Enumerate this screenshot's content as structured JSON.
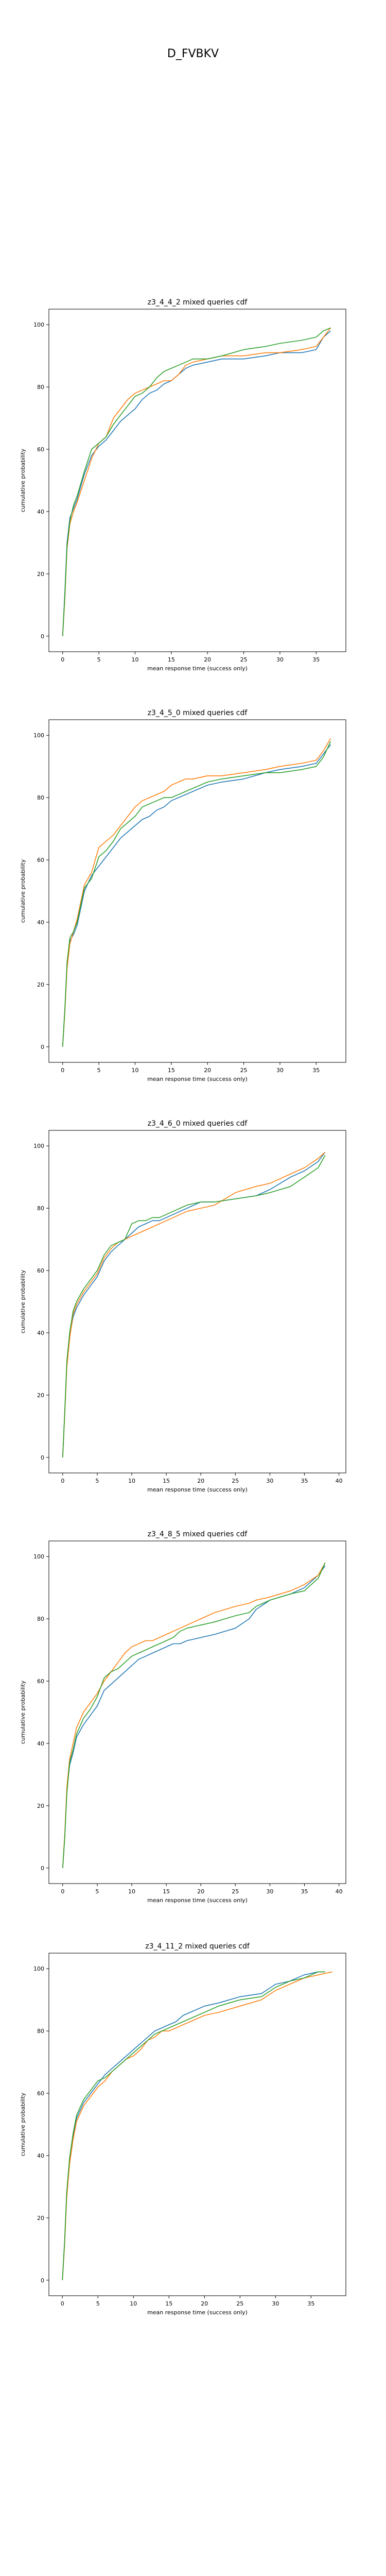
{
  "page": {
    "title": "D_FVBKV"
  },
  "series_colors": [
    "#1f77b4",
    "#ff7f0e",
    "#2ca02c"
  ],
  "chart_data": [
    {
      "type": "line",
      "title": "z3_4_4_2 mixed queries cdf",
      "xlabel": "mean response time (success only)",
      "ylabel": "cumulative probability",
      "xlim": [
        -1.9,
        39.1
      ],
      "ylim": [
        -5,
        105
      ],
      "xticks": [
        0,
        5,
        10,
        15,
        20,
        25,
        30,
        35
      ],
      "yticks": [
        0,
        20,
        40,
        60,
        80,
        100
      ],
      "grid": false,
      "series": [
        {
          "x": [
            0,
            0.3,
            0.6,
            1,
            1.5,
            2,
            3,
            4,
            5,
            6,
            7,
            8,
            9,
            10,
            11,
            12,
            13,
            14,
            15,
            16,
            17,
            18,
            20,
            22,
            25,
            28,
            30,
            33,
            35,
            36,
            37
          ],
          "y": [
            0,
            14,
            30,
            38,
            41,
            44,
            52,
            58,
            61,
            63,
            66,
            69,
            71,
            73,
            76,
            78,
            79,
            81,
            82,
            84,
            86,
            87,
            88,
            89,
            89,
            90,
            91,
            91,
            92,
            96,
            98
          ]
        },
        {
          "x": [
            0,
            0.3,
            0.6,
            1,
            1.5,
            2,
            3,
            4,
            5,
            6,
            7,
            8,
            9,
            10,
            11,
            12,
            13,
            14,
            15,
            16,
            17,
            18,
            20,
            22,
            25,
            28,
            30,
            33,
            35,
            36,
            37
          ],
          "y": [
            0,
            12,
            28,
            36,
            40,
            43,
            50,
            57,
            62,
            64,
            70,
            73,
            76,
            78,
            79,
            80,
            81,
            82,
            82,
            84,
            87,
            88,
            89,
            90,
            90,
            91,
            91,
            92,
            93,
            96,
            99
          ]
        },
        {
          "x": [
            0,
            0.3,
            0.6,
            1,
            1.5,
            2,
            3,
            4,
            5,
            6,
            7,
            8,
            9,
            10,
            11,
            12,
            13,
            14,
            15,
            16,
            17,
            18,
            20,
            22,
            25,
            28,
            30,
            33,
            35,
            36,
            37
          ],
          "y": [
            0,
            13,
            29,
            37,
            42,
            45,
            53,
            60,
            62,
            64,
            68,
            71,
            74,
            77,
            78,
            80,
            83,
            85,
            86,
            87,
            88,
            89,
            89,
            90,
            92,
            93,
            94,
            95,
            96,
            98,
            99
          ]
        }
      ]
    },
    {
      "type": "line",
      "title": "z3_4_5_0 mixed queries cdf",
      "xlabel": "mean response time (success only)",
      "ylabel": "cumulative probability",
      "xlim": [
        -1.9,
        39.1
      ],
      "ylim": [
        -5,
        105
      ],
      "xticks": [
        0,
        5,
        10,
        15,
        20,
        25,
        30,
        35
      ],
      "yticks": [
        0,
        20,
        40,
        60,
        80,
        100
      ],
      "grid": false,
      "series": [
        {
          "x": [
            0,
            0.3,
            0.6,
            1,
            1.5,
            2,
            3,
            4,
            5,
            6,
            7,
            8,
            9,
            10,
            11,
            12,
            13,
            14,
            15,
            16,
            17,
            18,
            20,
            22,
            25,
            28,
            30,
            33,
            35,
            36,
            37
          ],
          "y": [
            0,
            12,
            26,
            34,
            36,
            39,
            50,
            55,
            58,
            61,
            64,
            67,
            69,
            71,
            73,
            74,
            76,
            77,
            79,
            80,
            81,
            82,
            84,
            85,
            86,
            88,
            89,
            90,
            91,
            94,
            97
          ]
        },
        {
          "x": [
            0,
            0.3,
            0.6,
            1,
            1.5,
            2,
            3,
            4,
            5,
            6,
            7,
            8,
            9,
            10,
            11,
            12,
            13,
            14,
            15,
            16,
            17,
            18,
            20,
            22,
            25,
            28,
            30,
            33,
            35,
            36,
            37
          ],
          "y": [
            0,
            11,
            25,
            33,
            37,
            41,
            52,
            56,
            64,
            66,
            68,
            71,
            74,
            77,
            79,
            80,
            81,
            82,
            84,
            85,
            86,
            86,
            87,
            87,
            88,
            89,
            90,
            91,
            92,
            95,
            99
          ]
        },
        {
          "x": [
            0,
            0.3,
            0.6,
            1,
            1.5,
            2,
            3,
            4,
            5,
            6,
            7,
            8,
            9,
            10,
            11,
            12,
            13,
            14,
            15,
            16,
            17,
            18,
            20,
            22,
            25,
            28,
            30,
            33,
            35,
            36,
            37
          ],
          "y": [
            0,
            12,
            27,
            35,
            37,
            40,
            51,
            54,
            61,
            63,
            66,
            70,
            72,
            74,
            77,
            78,
            79,
            80,
            80,
            81,
            82,
            83,
            85,
            86,
            87,
            88,
            88,
            89,
            90,
            93,
            98
          ]
        }
      ]
    },
    {
      "type": "line",
      "title": "z3_4_6_0 mixed queries cdf",
      "xlabel": "mean response time (success only)",
      "ylabel": "cumulative probability",
      "xlim": [
        -2,
        41
      ],
      "ylim": [
        -5,
        105
      ],
      "xticks": [
        0,
        5,
        10,
        15,
        20,
        25,
        30,
        35,
        40
      ],
      "yticks": [
        0,
        20,
        40,
        60,
        80,
        100
      ],
      "grid": false,
      "series": [
        {
          "x": [
            0,
            0.3,
            0.6,
            1,
            1.5,
            2,
            3,
            4,
            5,
            6,
            7,
            8,
            9,
            10,
            11,
            12,
            13,
            14,
            15,
            16,
            17,
            18,
            20,
            22,
            25,
            28,
            30,
            33,
            35,
            37,
            38
          ],
          "y": [
            0,
            15,
            30,
            39,
            45,
            48,
            52,
            55,
            58,
            63,
            66,
            68,
            70,
            72,
            74,
            75,
            76,
            76,
            77,
            78,
            79,
            80,
            82,
            82,
            83,
            84,
            86,
            90,
            92,
            95,
            98
          ]
        },
        {
          "x": [
            0,
            0.3,
            0.6,
            1,
            1.5,
            2,
            3,
            4,
            5,
            6,
            7,
            8,
            9,
            10,
            11,
            12,
            13,
            14,
            15,
            16,
            17,
            18,
            20,
            22,
            25,
            28,
            30,
            33,
            35,
            37,
            38
          ],
          "y": [
            0,
            14,
            29,
            38,
            46,
            49,
            53,
            56,
            59,
            64,
            67,
            69,
            70,
            71,
            72,
            73,
            74,
            75,
            76,
            77,
            78,
            79,
            80,
            81,
            85,
            87,
            88,
            91,
            93,
            96,
            98
          ]
        },
        {
          "x": [
            0,
            0.3,
            0.6,
            1,
            1.5,
            2,
            3,
            4,
            5,
            6,
            7,
            8,
            9,
            10,
            11,
            12,
            13,
            14,
            15,
            16,
            17,
            18,
            20,
            22,
            25,
            28,
            30,
            33,
            35,
            37,
            38
          ],
          "y": [
            0,
            15,
            31,
            40,
            47,
            50,
            54,
            57,
            60,
            65,
            68,
            69,
            70,
            75,
            76,
            76,
            77,
            77,
            78,
            79,
            80,
            81,
            82,
            82,
            83,
            84,
            85,
            87,
            90,
            93,
            97
          ]
        }
      ]
    },
    {
      "type": "line",
      "title": "z3_4_8_5 mixed queries cdf",
      "xlabel": "mean response time (success only)",
      "ylabel": "cumulative probability",
      "xlim": [
        -2,
        41
      ],
      "ylim": [
        -5,
        105
      ],
      "xticks": [
        0,
        5,
        10,
        15,
        20,
        25,
        30,
        35,
        40
      ],
      "yticks": [
        0,
        20,
        40,
        60,
        80,
        100
      ],
      "grid": false,
      "series": [
        {
          "x": [
            0,
            0.3,
            0.6,
            1,
            1.5,
            2,
            3,
            4,
            5,
            6,
            7,
            8,
            9,
            10,
            11,
            12,
            13,
            14,
            15,
            16,
            17,
            18,
            20,
            22,
            25,
            27,
            28,
            30,
            33,
            35,
            37,
            38
          ],
          "y": [
            0,
            10,
            25,
            33,
            37,
            42,
            46,
            49,
            52,
            57,
            59,
            61,
            63,
            65,
            67,
            68,
            69,
            70,
            71,
            72,
            72,
            73,
            74,
            75,
            77,
            80,
            83,
            86,
            88,
            90,
            94,
            97
          ]
        },
        {
          "x": [
            0,
            0.3,
            0.6,
            1,
            1.5,
            2,
            3,
            4,
            5,
            6,
            7,
            8,
            9,
            10,
            11,
            12,
            13,
            14,
            15,
            16,
            17,
            18,
            20,
            22,
            25,
            27,
            28,
            30,
            33,
            35,
            37,
            38
          ],
          "y": [
            0,
            11,
            26,
            35,
            40,
            45,
            50,
            53,
            56,
            60,
            63,
            66,
            69,
            71,
            72,
            73,
            73,
            74,
            75,
            76,
            77,
            78,
            80,
            82,
            84,
            85,
            86,
            87,
            89,
            91,
            94,
            98
          ]
        },
        {
          "x": [
            0,
            0.3,
            0.6,
            1,
            1.5,
            2,
            3,
            4,
            5,
            6,
            7,
            8,
            9,
            10,
            11,
            12,
            13,
            14,
            15,
            16,
            17,
            18,
            20,
            22,
            25,
            27,
            28,
            30,
            33,
            35,
            37,
            38
          ],
          "y": [
            0,
            10,
            24,
            34,
            38,
            43,
            48,
            51,
            55,
            61,
            63,
            64,
            66,
            68,
            69,
            70,
            71,
            72,
            73,
            74,
            76,
            77,
            78,
            79,
            81,
            82,
            84,
            86,
            88,
            89,
            93,
            98
          ]
        }
      ]
    },
    {
      "type": "line",
      "title": "z3_4_11_2 mixed queries cdf",
      "xlabel": "mean response time (success only)",
      "ylabel": "cumulative probability",
      "xlim": [
        -1.9,
        39.9
      ],
      "ylim": [
        -5,
        105
      ],
      "xticks": [
        0,
        5,
        10,
        15,
        20,
        25,
        30,
        35
      ],
      "yticks": [
        0,
        20,
        40,
        60,
        80,
        100
      ],
      "grid": false,
      "series": [
        {
          "x": [
            0,
            0.3,
            0.6,
            1,
            1.5,
            2,
            3,
            4,
            5,
            6,
            7,
            8,
            9,
            10,
            11,
            12,
            13,
            14,
            15,
            16,
            17,
            18,
            20,
            22,
            25,
            28,
            30,
            32,
            34,
            36,
            37
          ],
          "y": [
            0,
            12,
            27,
            38,
            46,
            52,
            57,
            60,
            63,
            66,
            68,
            70,
            72,
            74,
            76,
            78,
            80,
            81,
            82,
            83,
            85,
            86,
            88,
            89,
            91,
            92,
            95,
            96,
            98,
            99,
            99
          ]
        },
        {
          "x": [
            0,
            0.3,
            0.6,
            1,
            1.5,
            2,
            3,
            4,
            5,
            6,
            7,
            8,
            9,
            10,
            11,
            12,
            13,
            14,
            15,
            16,
            17,
            18,
            20,
            22,
            25,
            28,
            30,
            32,
            34,
            36,
            38
          ],
          "y": [
            0,
            11,
            26,
            37,
            45,
            51,
            56,
            59,
            62,
            64,
            67,
            69,
            71,
            72,
            74,
            77,
            78,
            80,
            80,
            81,
            82,
            83,
            85,
            86,
            88,
            90,
            93,
            95,
            97,
            98,
            99
          ]
        },
        {
          "x": [
            0,
            0.3,
            0.6,
            1,
            1.5,
            2,
            3,
            4,
            5,
            6,
            7,
            8,
            9,
            10,
            11,
            12,
            13,
            14,
            15,
            16,
            17,
            18,
            20,
            22,
            25,
            28,
            30,
            32,
            34,
            36,
            37
          ],
          "y": [
            0,
            12,
            28,
            39,
            47,
            53,
            58,
            61,
            64,
            65,
            67,
            69,
            71,
            73,
            75,
            77,
            79,
            80,
            81,
            82,
            83,
            84,
            86,
            88,
            90,
            91,
            94,
            96,
            97,
            99,
            99
          ]
        }
      ]
    }
  ]
}
